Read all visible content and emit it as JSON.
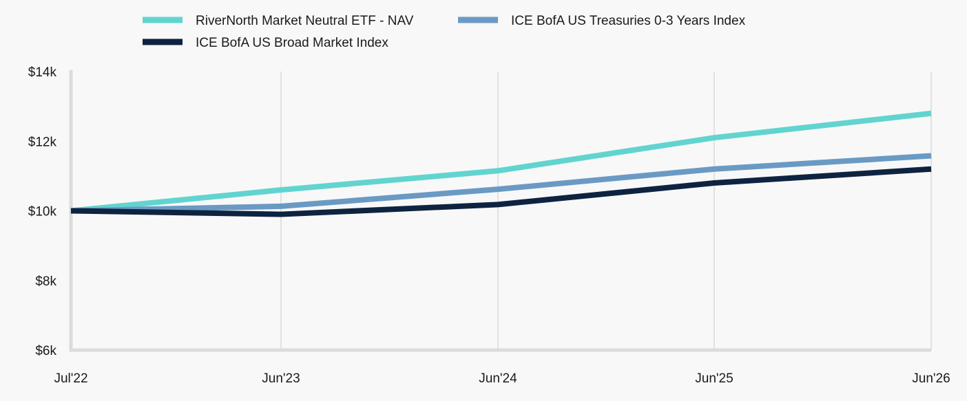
{
  "chart_data": {
    "type": "line",
    "title": "",
    "xlabel": "",
    "ylabel": "",
    "categories": [
      "Jul'22",
      "Jun'23",
      "Jun'24",
      "Jun'25",
      "Jun'26"
    ],
    "ylim": [
      6000,
      14000
    ],
    "yticks": [
      6000,
      8000,
      10000,
      12000,
      14000
    ],
    "ytick_labels": [
      "$6k",
      "$8k",
      "$10k",
      "$12k",
      "$14k"
    ],
    "grid": "vertical",
    "legend_position": "top",
    "series": [
      {
        "name": "RiverNorth Market Neutral ETF - NAV",
        "color": "#62d4d0",
        "values": [
          10000,
          10600,
          11150,
          12100,
          12800
        ]
      },
      {
        "name": "ICE BofA US Treasuries 0-3 Years Index",
        "color": "#6a9ac4",
        "values": [
          10000,
          10130,
          10620,
          11200,
          11580
        ]
      },
      {
        "name": "ICE BofA US Broad Market Index",
        "color": "#0e2340",
        "values": [
          10000,
          9900,
          10180,
          10800,
          11200
        ]
      }
    ]
  }
}
